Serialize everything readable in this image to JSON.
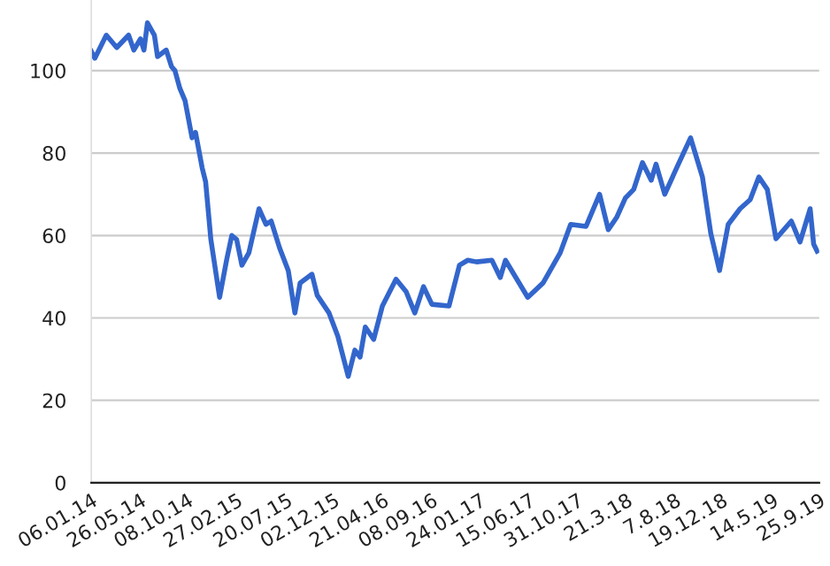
{
  "chart_data": {
    "type": "line",
    "x": [
      "2014-01-06",
      "2014-01-16",
      "2014-02-18",
      "2014-03-20",
      "2014-04-23",
      "2014-05-08",
      "2014-05-27",
      "2014-06-06",
      "2014-06-16",
      "2014-07-06",
      "2014-07-15",
      "2014-08-09",
      "2014-08-24",
      "2014-09-03",
      "2014-09-17",
      "2014-10-02",
      "2014-10-22",
      "2014-11-01",
      "2014-11-20",
      "2014-11-30",
      "2014-12-15",
      "2015-01-09",
      "2015-01-29",
      "2015-02-13",
      "2015-02-27",
      "2015-03-14",
      "2015-04-03",
      "2015-05-02",
      "2015-05-22",
      "2015-06-06",
      "2015-06-30",
      "2015-07-25",
      "2015-08-13",
      "2015-08-28",
      "2015-10-01",
      "2015-10-16",
      "2015-11-19",
      "2015-12-14",
      "2016-01-13",
      "2016-02-01",
      "2016-02-16",
      "2016-03-02",
      "2016-03-26",
      "2016-04-20",
      "2016-05-29",
      "2016-06-27",
      "2016-07-22",
      "2016-08-16",
      "2016-09-09",
      "2016-10-28",
      "2016-11-27",
      "2016-12-21",
      "2017-01-15",
      "2017-02-28",
      "2017-03-24",
      "2017-04-08",
      "2017-06-11",
      "2017-07-25",
      "2017-09-12",
      "2017-10-12",
      "2017-11-25",
      "2018-01-03",
      "2018-01-28",
      "2018-02-21",
      "2018-03-18",
      "2018-04-11",
      "2018-05-06",
      "2018-05-31",
      "2018-06-14",
      "2018-07-09",
      "2018-08-12",
      "2018-09-21",
      "2018-10-25",
      "2018-11-18",
      "2018-12-13",
      "2019-01-07",
      "2019-02-10",
      "2019-03-11",
      "2019-04-05",
      "2019-04-29",
      "2019-05-24",
      "2019-07-07",
      "2019-08-01",
      "2019-08-30",
      "2019-09-09",
      "2019-09-19"
    ],
    "series": [
      {
        "color": "#3366cc",
        "values": [
          104.7,
          103,
          108.6,
          105.6,
          108.6,
          105,
          107.7,
          105,
          111.6,
          108.6,
          103.4,
          105,
          101,
          100,
          95.7,
          92.7,
          83.7,
          85,
          76.4,
          73,
          59,
          45,
          54,
          60,
          59,
          52.8,
          55.8,
          66.5,
          62.7,
          63.5,
          57,
          51.5,
          41.2,
          48.5,
          50.6,
          45.5,
          41.2,
          35.6,
          25.8,
          32.2,
          30.5,
          37.8,
          34.8,
          42.9,
          49.4,
          46.4,
          41.2,
          47.6,
          43.3,
          42.9,
          52.8,
          54,
          53.6,
          54,
          49.8,
          54,
          45,
          48.5,
          55.8,
          62.7,
          62.2,
          70,
          61.4,
          64.4,
          69.1,
          71.2,
          77.7,
          73.4,
          77.3,
          70,
          76.4,
          83.7,
          74.2,
          60.5,
          51.5,
          62.7,
          66.5,
          68.7,
          74.2,
          71.2,
          59.2,
          63.5,
          58.4,
          66.5,
          57.9,
          56.2
        ]
      }
    ],
    "xlim": [
      "2014-01-06",
      "2019-09-25"
    ],
    "xticks": [
      {
        "value": "2014-01-06",
        "label": "06.01.14"
      },
      {
        "value": "2014-05-26",
        "label": "26.05.14"
      },
      {
        "value": "2014-10-08",
        "label": "08.10.14"
      },
      {
        "value": "2015-02-27",
        "label": "27.02.15"
      },
      {
        "value": "2015-07-20",
        "label": "20.07.15"
      },
      {
        "value": "2015-12-02",
        "label": "02.12.15"
      },
      {
        "value": "2016-04-21",
        "label": "21.04.16"
      },
      {
        "value": "2016-09-08",
        "label": "08.09.16"
      },
      {
        "value": "2017-01-24",
        "label": "24.01.17"
      },
      {
        "value": "2017-06-15",
        "label": "15.06.17"
      },
      {
        "value": "2017-10-31",
        "label": "31.10.17"
      },
      {
        "value": "2018-03-21",
        "label": "21.3.18"
      },
      {
        "value": "2018-08-07",
        "label": "7.8.18"
      },
      {
        "value": "2018-12-19",
        "label": "19.12.18"
      },
      {
        "value": "2019-05-14",
        "label": "14.5.19"
      },
      {
        "value": "2019-09-25",
        "label": "25.9.19"
      }
    ],
    "ylim": [
      0,
      117
    ],
    "yticks": [
      0,
      20,
      40,
      60,
      80,
      100
    ],
    "grid": "y",
    "marker": "none",
    "line_style": "solid"
  }
}
